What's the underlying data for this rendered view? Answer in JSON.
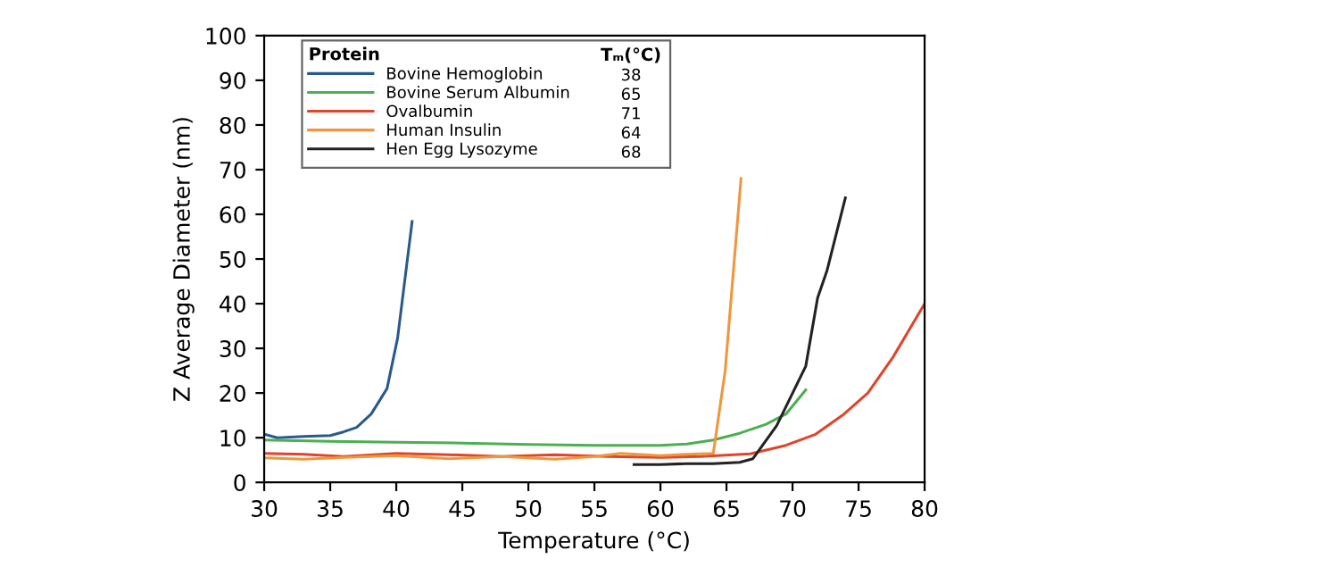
{
  "chart_data": {
    "type": "line",
    "xlabel": "Temperature (°C)",
    "ylabel": "Z Average Diameter (nm)",
    "xlim": [
      30,
      80
    ],
    "xticks": [
      30,
      35,
      40,
      45,
      50,
      55,
      60,
      65,
      70,
      75,
      80
    ],
    "ylim": [
      0,
      100
    ],
    "yticks": [
      0,
      10,
      20,
      30,
      40,
      50,
      60,
      70,
      80,
      90,
      100
    ],
    "grid": false,
    "legend": "top left",
    "legend_title": "Protein",
    "marker": "none",
    "line_style": "solid",
    "annotations": [
      "Tₘ(°C)",
      "38",
      "65",
      "71",
      "64",
      "68"
    ],
    "series": [
      {
        "name": "Bovine Hemoglobin",
        "color": "#2a5a8c",
        "x": [
          30,
          31,
          33,
          35,
          36,
          37,
          38.1,
          39.3,
          40.1,
          41.2
        ],
        "values": [
          10.8,
          10,
          10.3,
          10.5,
          11.3,
          12.3,
          15.3,
          21,
          32.3,
          58.4
        ]
      },
      {
        "name": "Bovine Serum Albumin",
        "color": "#4caf50",
        "x": [
          30,
          35,
          40,
          45,
          50,
          55,
          60,
          62,
          64,
          66,
          68,
          69.5,
          71
        ],
        "values": [
          9.5,
          9.2,
          9,
          8.8,
          8.5,
          8.3,
          8.3,
          8.6,
          9.5,
          11,
          13,
          15.3,
          20.7
        ]
      },
      {
        "name": "Ovalbumin",
        "color": "#e0452a",
        "x": [
          30,
          33,
          36,
          40,
          44,
          48,
          52,
          56,
          60,
          63,
          66.8,
          69.5,
          71.7,
          73.9,
          75.7,
          77.6,
          80
        ],
        "values": [
          6.5,
          6.3,
          5.8,
          6.5,
          6.2,
          5.8,
          6.2,
          5.8,
          5.6,
          5.8,
          6.4,
          8.3,
          10.7,
          15.3,
          20,
          28,
          40
        ]
      },
      {
        "name": "Human Insulin",
        "color": "#f0963c",
        "x": [
          30,
          33,
          36,
          40,
          44,
          48,
          52,
          55,
          57,
          60,
          62,
          64,
          64.9,
          66.1
        ],
        "values": [
          5.5,
          5.2,
          5.6,
          6,
          5.3,
          5.8,
          5.2,
          5.8,
          6.5,
          6,
          6.3,
          6.5,
          25,
          68
        ]
      },
      {
        "name": "Hen Egg Lysozyme",
        "color": "#222222",
        "x": [
          58,
          60,
          62,
          64,
          66,
          67,
          68.8,
          71,
          71.9,
          72.6,
          74
        ],
        "values": [
          4,
          4,
          4.2,
          4.2,
          4.5,
          5.3,
          12.7,
          26,
          41.3,
          47.3,
          63.7
        ]
      }
    ]
  }
}
